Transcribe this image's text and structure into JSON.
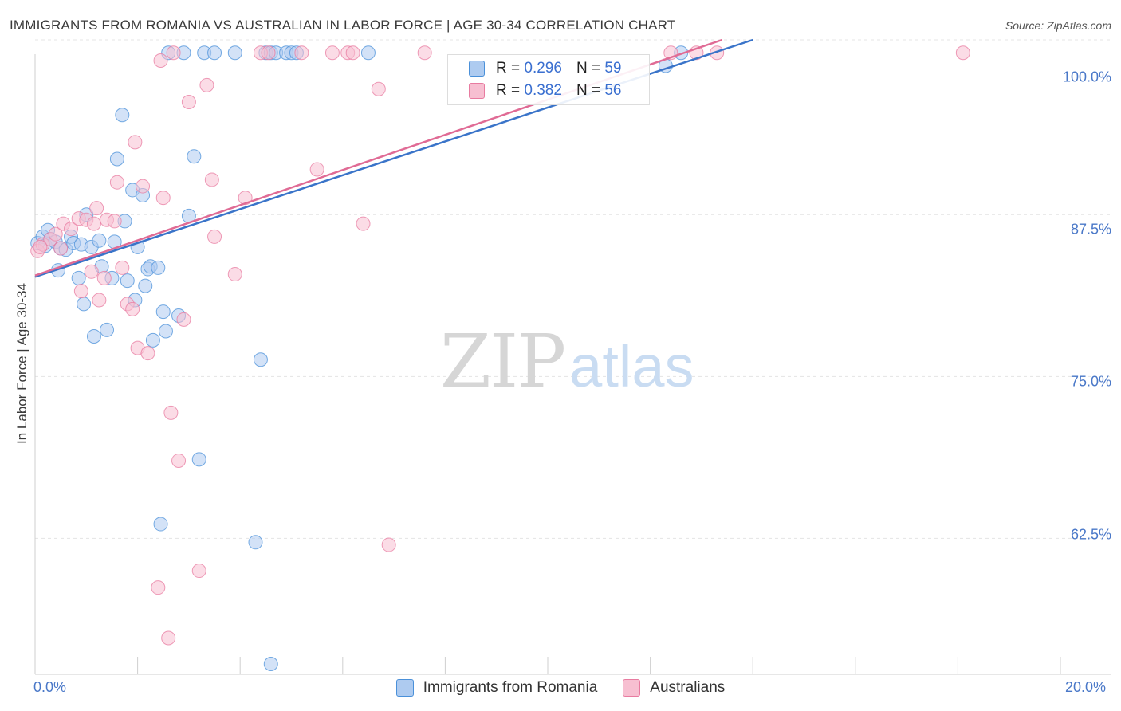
{
  "title": "IMMIGRANTS FROM ROMANIA VS AUSTRALIAN IN LABOR FORCE | AGE 30-34 CORRELATION CHART",
  "source": "Source: ZipAtlas.com",
  "watermark": {
    "zip": "ZIP",
    "atlas": "atlas"
  },
  "stats": [
    {
      "r_label": "R = ",
      "r_value": "0.296",
      "n_label": "N = ",
      "n_value": "59",
      "color": "#4a90d9"
    },
    {
      "r_label": "R = ",
      "r_value": "0.382",
      "n_label": "N = ",
      "n_value": "56",
      "color": "#e87ba0"
    }
  ],
  "chart_data": {
    "type": "scatter",
    "title": "IMMIGRANTS FROM ROMANIA VS AUSTRALIAN IN LABOR FORCE | AGE 30-34 CORRELATION CHART",
    "xlabel": "",
    "ylabel": "In Labor Force | Age 30-34",
    "xlim": [
      0,
      20
    ],
    "ylim": [
      52,
      101
    ],
    "x_tick_labels": [
      "0.0%",
      "20.0%"
    ],
    "y_ticks": [
      {
        "value": 100,
        "label": "100.0%"
      },
      {
        "value": 87.5,
        "label": "87.5%"
      },
      {
        "value": 75,
        "label": "75.0%"
      },
      {
        "value": 62.5,
        "label": "62.5%"
      }
    ],
    "grid": true,
    "legend_position": "bottom-center",
    "series": [
      {
        "name": "Immigrants from Romania",
        "color": "#4a90d9",
        "fill": "#aecbf0",
        "trend": {
          "x0": 0,
          "y0": 82.7,
          "x1": 14.0,
          "y1": 101
        },
        "points": [
          [
            0.05,
            85.3
          ],
          [
            0.15,
            85.8
          ],
          [
            0.2,
            85.1
          ],
          [
            0.25,
            86.3
          ],
          [
            0.3,
            85.6
          ],
          [
            0.4,
            85.4
          ],
          [
            0.45,
            83.2
          ],
          [
            0.5,
            84.9
          ],
          [
            0.6,
            84.8
          ],
          [
            0.7,
            85.8
          ],
          [
            0.75,
            85.3
          ],
          [
            0.85,
            82.6
          ],
          [
            0.9,
            85.2
          ],
          [
            0.95,
            80.6
          ],
          [
            1.0,
            87.5
          ],
          [
            1.1,
            85.0
          ],
          [
            1.15,
            78.1
          ],
          [
            1.25,
            85.5
          ],
          [
            1.3,
            83.5
          ],
          [
            1.4,
            78.6
          ],
          [
            1.5,
            82.6
          ],
          [
            1.55,
            85.4
          ],
          [
            1.6,
            91.8
          ],
          [
            1.7,
            95.2
          ],
          [
            1.75,
            87.0
          ],
          [
            1.8,
            82.4
          ],
          [
            1.9,
            89.4
          ],
          [
            1.95,
            80.9
          ],
          [
            2.0,
            85.0
          ],
          [
            2.1,
            89.0
          ],
          [
            2.15,
            82.0
          ],
          [
            2.2,
            83.3
          ],
          [
            2.25,
            83.5
          ],
          [
            2.3,
            77.8
          ],
          [
            2.4,
            83.4
          ],
          [
            2.45,
            63.6
          ],
          [
            2.5,
            80.0
          ],
          [
            2.55,
            78.5
          ],
          [
            2.6,
            100
          ],
          [
            2.8,
            79.7
          ],
          [
            2.9,
            100
          ],
          [
            3.0,
            87.4
          ],
          [
            3.1,
            92.0
          ],
          [
            3.2,
            68.6
          ],
          [
            3.3,
            100
          ],
          [
            3.5,
            100
          ],
          [
            3.9,
            100
          ],
          [
            4.3,
            62.2
          ],
          [
            4.4,
            76.3
          ],
          [
            4.5,
            100
          ],
          [
            4.6,
            100
          ],
          [
            4.7,
            100
          ],
          [
            4.6,
            52.8
          ],
          [
            4.9,
            100
          ],
          [
            5.0,
            100
          ],
          [
            5.1,
            100
          ],
          [
            6.5,
            100
          ],
          [
            12.3,
            99.0
          ],
          [
            12.6,
            100
          ]
        ]
      },
      {
        "name": "Australians",
        "color": "#e87ba0",
        "fill": "#f7bfd1",
        "trend": {
          "x0": 0,
          "y0": 82.8,
          "x1": 13.4,
          "y1": 101
        },
        "points": [
          [
            0.05,
            84.7
          ],
          [
            0.15,
            85.2
          ],
          [
            0.3,
            85.6
          ],
          [
            0.4,
            86.0
          ],
          [
            0.5,
            84.9
          ],
          [
            0.55,
            86.8
          ],
          [
            0.7,
            86.4
          ],
          [
            0.85,
            87.2
          ],
          [
            0.9,
            81.6
          ],
          [
            1.0,
            87.1
          ],
          [
            1.1,
            83.1
          ],
          [
            1.15,
            86.8
          ],
          [
            1.2,
            88.0
          ],
          [
            1.25,
            80.9
          ],
          [
            1.35,
            82.6
          ],
          [
            1.4,
            87.1
          ],
          [
            1.55,
            87.0
          ],
          [
            1.6,
            90.0
          ],
          [
            1.7,
            83.4
          ],
          [
            1.8,
            80.6
          ],
          [
            1.9,
            80.2
          ],
          [
            1.95,
            93.1
          ],
          [
            2.0,
            77.2
          ],
          [
            2.1,
            89.7
          ],
          [
            2.2,
            76.8
          ],
          [
            2.4,
            58.7
          ],
          [
            2.45,
            99.4
          ],
          [
            2.5,
            88.8
          ],
          [
            2.6,
            54.8
          ],
          [
            2.65,
            72.2
          ],
          [
            2.7,
            100
          ],
          [
            2.8,
            68.5
          ],
          [
            2.9,
            79.4
          ],
          [
            3.0,
            96.2
          ],
          [
            3.2,
            60.0
          ],
          [
            3.35,
            97.5
          ],
          [
            3.45,
            90.2
          ],
          [
            3.5,
            85.8
          ],
          [
            3.9,
            82.9
          ],
          [
            4.1,
            88.8
          ],
          [
            4.4,
            100
          ],
          [
            4.55,
            100
          ],
          [
            5.2,
            100
          ],
          [
            5.5,
            91.0
          ],
          [
            5.8,
            100
          ],
          [
            6.1,
            100
          ],
          [
            6.2,
            100
          ],
          [
            6.4,
            86.8
          ],
          [
            6.7,
            97.2
          ],
          [
            6.9,
            62.0
          ],
          [
            7.6,
            100
          ],
          [
            12.4,
            100
          ],
          [
            12.9,
            100
          ],
          [
            13.3,
            100
          ],
          [
            18.1,
            100
          ],
          [
            0.1,
            85.0
          ]
        ]
      }
    ]
  }
}
